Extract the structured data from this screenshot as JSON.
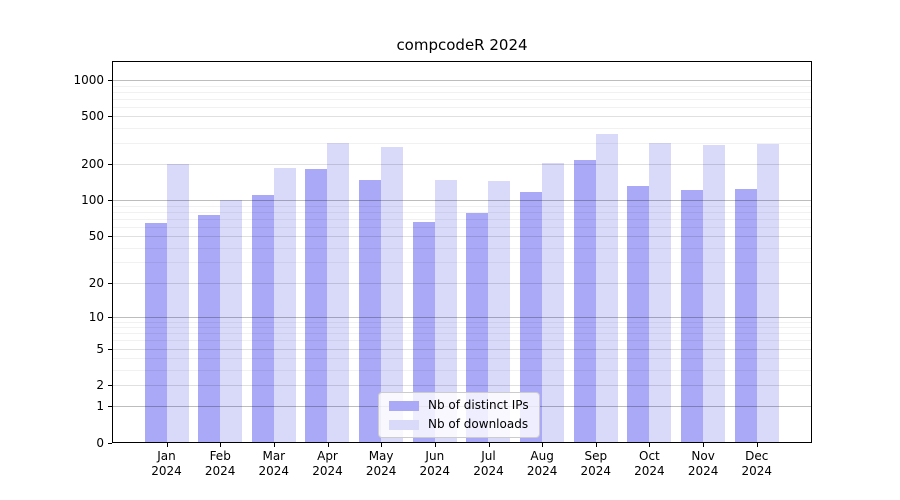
{
  "figure": {
    "title": "compcodeR 2024"
  },
  "chart_data": {
    "type": "bar",
    "title": "compcodeR 2024",
    "categories": [
      "Jan 2024",
      "Feb 2024",
      "Mar 2024",
      "Apr 2024",
      "May 2024",
      "Jun 2024",
      "Jul 2024",
      "Aug 2024",
      "Sep 2024",
      "Oct 2024",
      "Nov 2024",
      "Dec 2024"
    ],
    "series": [
      {
        "name": "Nb of distinct IPs",
        "color": "#a9a9f7",
        "values": [
          65,
          75,
          110,
          183,
          148,
          66,
          78,
          118,
          216,
          131,
          121,
          124
        ]
      },
      {
        "name": "Nb of downloads",
        "color": "#d9d9fa",
        "values": [
          200,
          100,
          187,
          300,
          280,
          148,
          145,
          205,
          360,
          300,
          291,
          297
        ]
      }
    ],
    "yscale": "log1p",
    "yticks": [
      0,
      1,
      2,
      5,
      10,
      20,
      50,
      100,
      200,
      500,
      1000
    ],
    "ylim": [
      0,
      1400
    ],
    "xlabel": "",
    "ylabel": "",
    "grid": "horizontal, log decades with minor lines",
    "legend_position": "lower center"
  }
}
